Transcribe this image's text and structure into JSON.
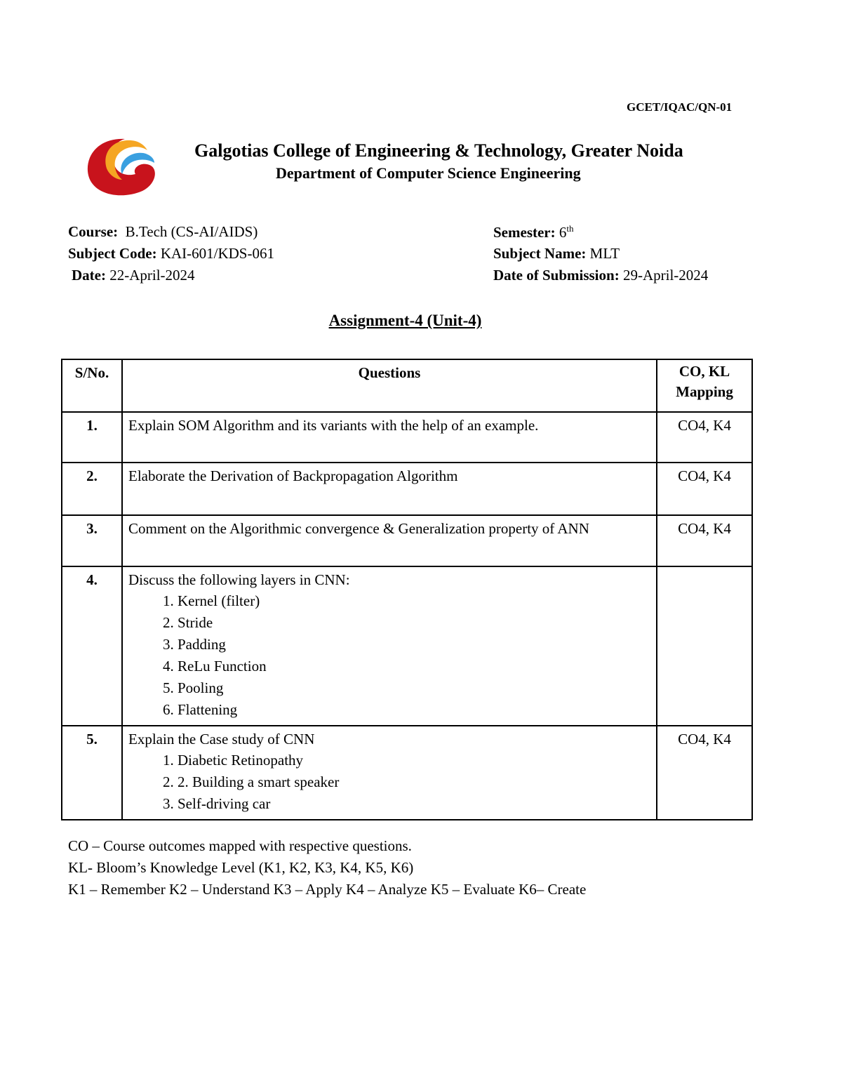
{
  "doc_code": "GCET/IQAC/QN-01",
  "header": {
    "institution": "Galgotias College of Engineering & Technology, Greater Noida",
    "department": "Department of Computer Science Engineering"
  },
  "meta": {
    "course_label": "Course:",
    "course": "B.Tech (CS-AI/AIDS)",
    "semester_label": "Semester:",
    "semester": "6",
    "semester_sup": "th",
    "subject_code_label": "Subject Code:",
    "subject_code": "KAI-601/KDS-061",
    "subject_name_label": "Subject Name:",
    "subject_name": "MLT",
    "date_label": "Date:",
    "date": "22-April-2024",
    "submission_label": "Date of Submission:",
    "submission": "29-April-2024"
  },
  "title": "Assignment-4 (Unit-4)",
  "table": {
    "headers": [
      "S/No.",
      "Questions",
      "CO, KL Mapping"
    ],
    "rows": [
      {
        "sn": "1.",
        "q": "Explain SOM Algorithm and its variants with the help of an example.",
        "items": [],
        "co": "CO4, K4"
      },
      {
        "sn": "2.",
        "q": "Elaborate the Derivation of Backpropagation Algorithm",
        "items": [],
        "co": "CO4, K4"
      },
      {
        "sn": "3.",
        "q": "Comment on the Algorithmic convergence & Generalization property of ANN",
        "items": [],
        "co": "CO4, K4"
      },
      {
        "sn": "4.",
        "q": "Discuss the following layers in CNN:",
        "items": [
          "Kernel (filter)",
          "Stride",
          "Padding",
          "ReLu Function",
          "Pooling",
          "Flattening"
        ],
        "co": ""
      },
      {
        "sn": "5.",
        "q": "Explain the Case study of CNN",
        "items": [
          "Diabetic Retinopathy",
          "2. Building a smart speaker",
          "Self-driving car"
        ],
        "co": "CO4, K4"
      }
    ]
  },
  "notes": [
    "CO – Course outcomes mapped with respective questions.",
    "KL- Bloom’s Knowledge Level (K1, K2, K3, K4, K5, K6)",
    "K1 – Remember K2 – Understand K3 – Apply K4 – Analyze K5 – Evaluate K6– Create"
  ]
}
